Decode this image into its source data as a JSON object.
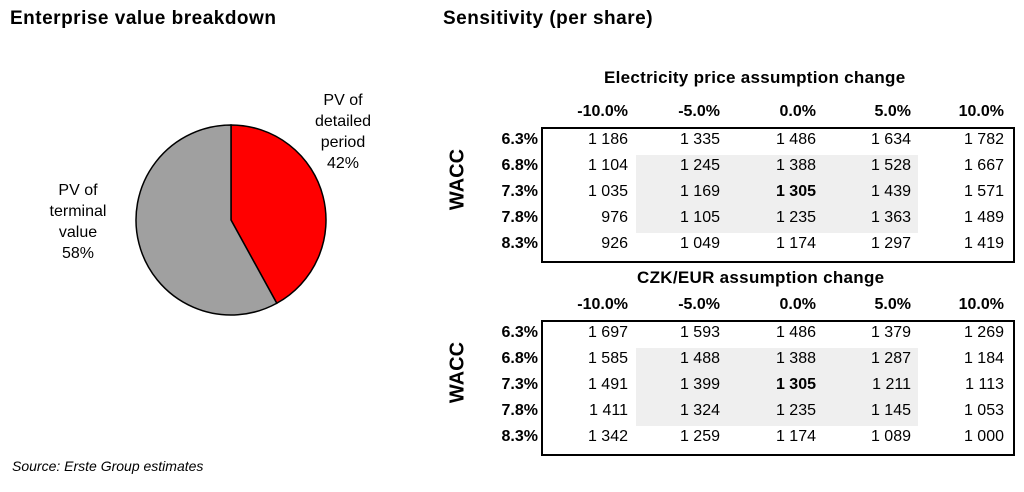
{
  "titles": {
    "enterprise_value": "Enterprise value breakdown",
    "sensitivity": "Sensitivity (per share)"
  },
  "source": "Source: Erste Group estimates",
  "chart_data": [
    {
      "type": "pie",
      "title": "Enterprise value breakdown",
      "slices": [
        {
          "label_lines": [
            "PV of",
            "detailed",
            "period",
            "42%"
          ],
          "value": 42,
          "color": "#ff0000"
        },
        {
          "label_lines": [
            "PV of",
            "terminal",
            "value",
            "58%"
          ],
          "value": 58,
          "color": "#a0a0a0"
        }
      ]
    },
    {
      "type": "table",
      "title": "Electricity price assumption change",
      "row_axis_label": "WACC",
      "columns": [
        "-10.0%",
        "-5.0%",
        "0.0%",
        "5.0%",
        "10.0%"
      ],
      "rows": [
        "6.3%",
        "6.8%",
        "7.3%",
        "7.8%",
        "8.3%"
      ],
      "values": [
        [
          "1 186",
          "1 335",
          "1 486",
          "1 634",
          "1 782"
        ],
        [
          "1 104",
          "1 245",
          "1 388",
          "1 528",
          "1 667"
        ],
        [
          "1 035",
          "1 169",
          "1 305",
          "1 439",
          "1 571"
        ],
        [
          "976",
          "1 105",
          "1 235",
          "1 363",
          "1 489"
        ],
        [
          "926",
          "1 049",
          "1 174",
          "1 297",
          "1 419"
        ]
      ],
      "highlight": {
        "row": 2,
        "col": 2
      }
    },
    {
      "type": "table",
      "title": "CZK/EUR assumption change",
      "row_axis_label": "WACC",
      "columns": [
        "-10.0%",
        "-5.0%",
        "0.0%",
        "5.0%",
        "10.0%"
      ],
      "rows": [
        "6.3%",
        "6.8%",
        "7.3%",
        "7.8%",
        "8.3%"
      ],
      "values": [
        [
          "1 697",
          "1 593",
          "1 486",
          "1 379",
          "1 269"
        ],
        [
          "1 585",
          "1 488",
          "1 388",
          "1 287",
          "1 184"
        ],
        [
          "1 491",
          "1 399",
          "1 305",
          "1 211",
          "1 113"
        ],
        [
          "1 411",
          "1 324",
          "1 235",
          "1 145",
          "1 053"
        ],
        [
          "1 342",
          "1 259",
          "1 174",
          "1 089",
          "1 000"
        ]
      ],
      "highlight": {
        "row": 2,
        "col": 2
      }
    }
  ]
}
